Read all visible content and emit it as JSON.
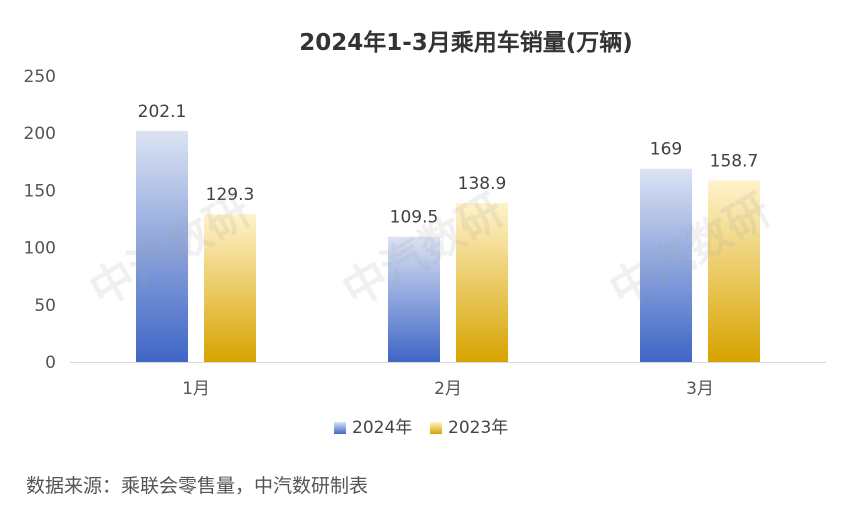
{
  "chart_data": {
    "type": "bar",
    "title": "2024年1-3月乘用车销量(万辆)",
    "categories": [
      "1月",
      "2月",
      "3月"
    ],
    "series": [
      {
        "name": "2024年",
        "values": [
          202.1,
          109.5,
          169
        ],
        "labels": [
          "202.1",
          "109.5",
          "169"
        ]
      },
      {
        "name": "2023年",
        "values": [
          129.3,
          138.9,
          158.7
        ],
        "labels": [
          "129.3",
          "138.9",
          "158.7"
        ]
      }
    ],
    "ylim": [
      0,
      250
    ],
    "yticks": [
      "0",
      "50",
      "100",
      "150",
      "200",
      "250"
    ],
    "grid": false,
    "legend_position": "bottom",
    "colors": {
      "series_2024_top": "#dbe3f3",
      "series_2024_bottom": "#3f66c6",
      "series_2023_top": "#fff3cc",
      "series_2023_bottom": "#d7a300"
    }
  },
  "watermark": "中汽数研",
  "source": "数据来源：乘联会零售量，中汽数研制表"
}
